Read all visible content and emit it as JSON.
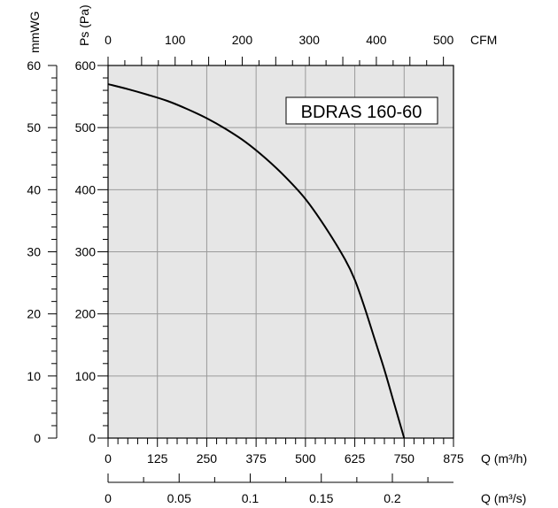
{
  "chart_data": {
    "type": "line",
    "title": "BDRAS 160-60",
    "series": [
      {
        "x": [
          0,
          50,
          100,
          150,
          200,
          250,
          300,
          350,
          400,
          450,
          500,
          550,
          600,
          625,
          650,
          675,
          700,
          725,
          750
        ],
        "values": [
          570,
          562,
          553,
          543,
          530,
          515,
          497,
          476,
          450,
          420,
          385,
          340,
          288,
          255,
          210,
          160,
          110,
          55,
          0
        ]
      }
    ],
    "axes": {
      "q_m3h": {
        "label": "Q (m³/h)",
        "ticks": [
          "0",
          "125",
          "250",
          "375",
          "500",
          "625",
          "750",
          "875"
        ],
        "range": [
          0,
          875
        ]
      },
      "q_m3s": {
        "label": "Q (m³/s)",
        "ticks": [
          "0",
          "0.05",
          "0.1",
          "0.15",
          "0.2"
        ],
        "range": [
          0,
          0.243
        ]
      },
      "cfm": {
        "label": "CFM",
        "ticks": [
          "0",
          "100",
          "200",
          "300",
          "400",
          "500"
        ],
        "range": [
          0,
          515
        ]
      },
      "ps_pa": {
        "label": "Ps (Pa)",
        "ticks": [
          "0",
          "100",
          "200",
          "300",
          "400",
          "500",
          "600"
        ],
        "range": [
          0,
          600
        ]
      },
      "mmwg": {
        "label": "mmWG",
        "ticks": [
          "0",
          "10",
          "20",
          "30",
          "40",
          "50",
          "60"
        ],
        "range": [
          0,
          60
        ]
      }
    },
    "grid": true,
    "colors": {
      "plot_background": "#e6e6e6",
      "grid": "#9a9a9a",
      "curve": "#000000"
    }
  }
}
